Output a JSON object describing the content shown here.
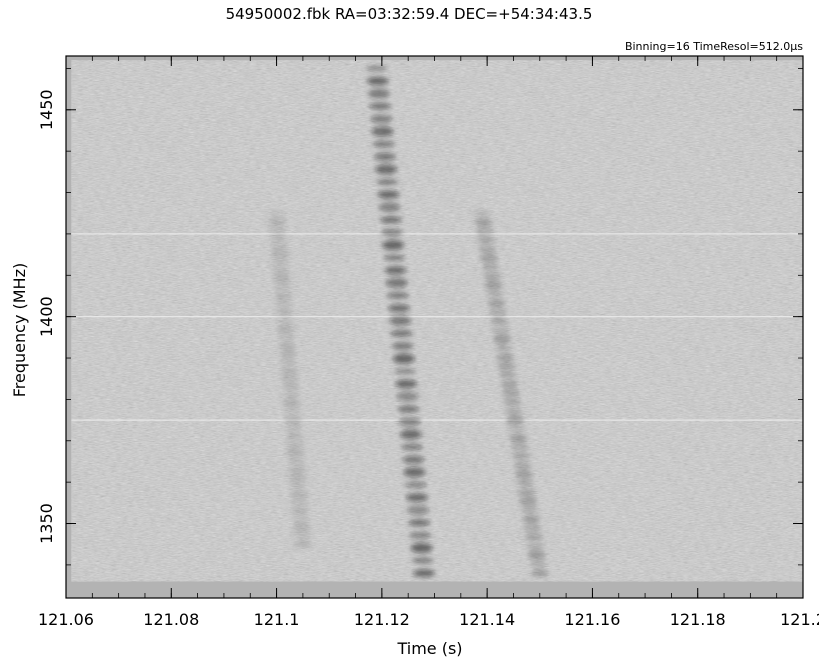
{
  "chart_data": {
    "type": "heatmap",
    "title": "54950002.fbk RA=03:32:59.4 DEC=+54:34:43.5",
    "annotation": "Binning=16  TimeResol=512.0μs",
    "xlabel": "Time (s)",
    "ylabel": "Frequency (MHz)",
    "xlim": [
      121.06,
      121.2
    ],
    "ylim": [
      1332,
      1463
    ],
    "x_ticks": [
      121.06,
      121.08,
      121.1,
      121.12,
      121.14,
      121.16,
      121.18,
      121.2
    ],
    "x_tick_labels": [
      "121.06",
      "121.08",
      "121.1",
      "121.12",
      "121.14",
      "121.16",
      "121.18",
      "121.2"
    ],
    "y_ticks": [
      1350,
      1400,
      1450
    ],
    "y_tick_labels": [
      "1350",
      "1400",
      "1450"
    ],
    "colormap": "grayscale (dark = high intensity)",
    "data_extent": {
      "time": [
        121.061,
        121.2
      ],
      "frequency": [
        1336,
        1462
      ]
    },
    "features": [
      {
        "kind": "dispersed pulse",
        "time_at_top": 121.119,
        "time_at_bottom": 121.128,
        "freq_top": 1460,
        "freq_bottom": 1338,
        "intensity": "strong"
      },
      {
        "kind": "faint echo",
        "time_at_top": 121.139,
        "time_at_bottom": 121.15,
        "freq_top": 1425,
        "freq_bottom": 1338,
        "intensity": "weak"
      },
      {
        "kind": "faint precursor",
        "time_at_top": 121.1,
        "time_at_bottom": 121.105,
        "freq_top": 1425,
        "freq_bottom": 1345,
        "intensity": "very weak"
      }
    ],
    "rfi_lines_mhz": [
      1375,
      1420,
      1400
    ],
    "grid": false
  }
}
